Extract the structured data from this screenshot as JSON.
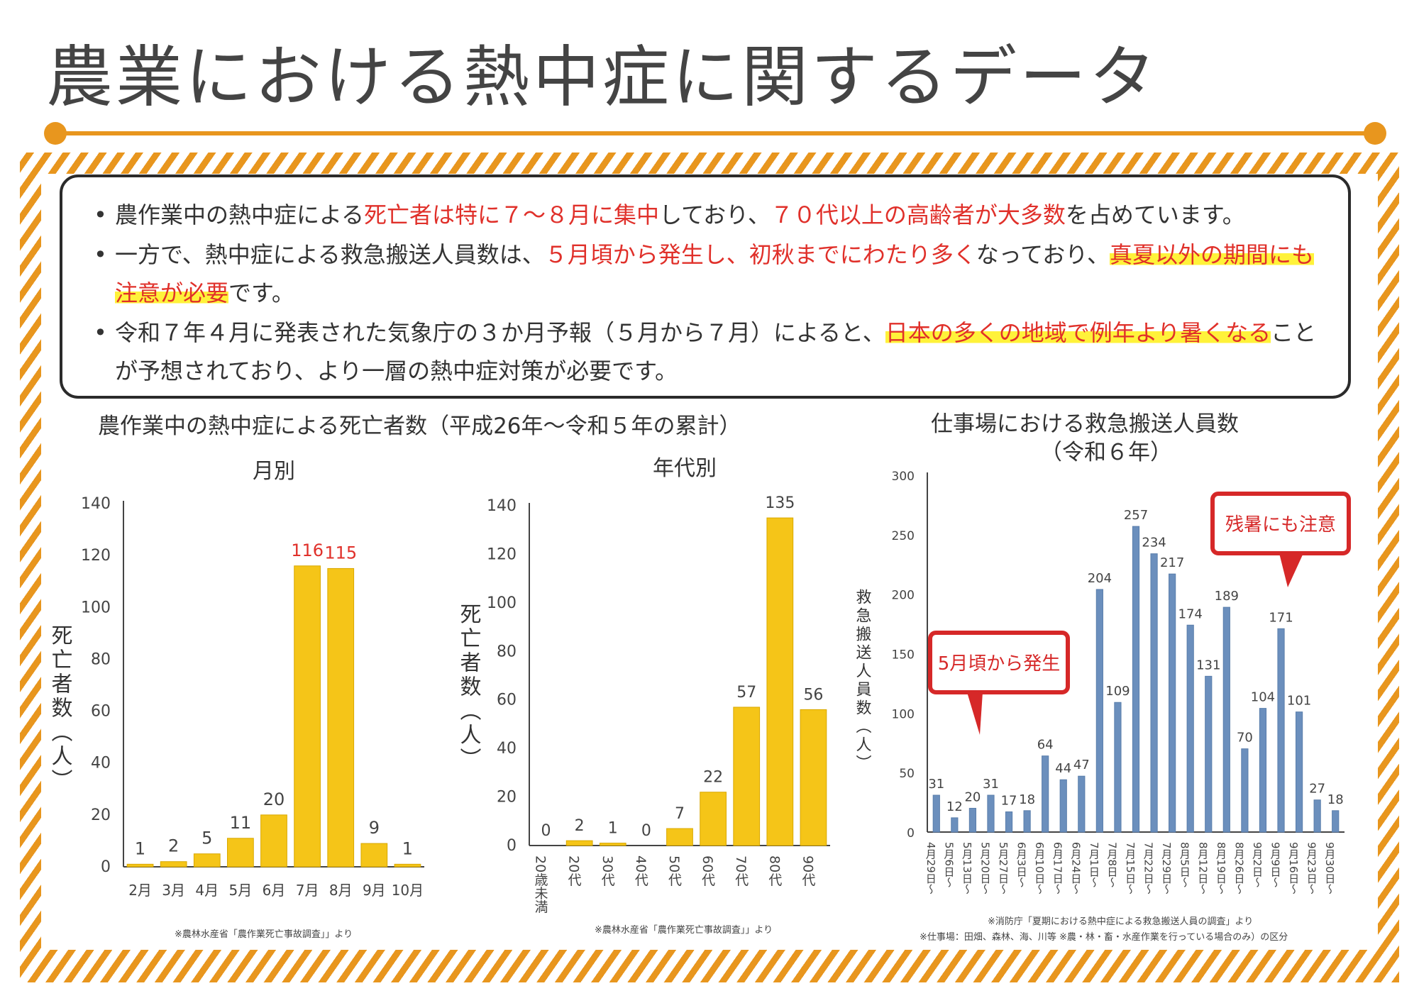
{
  "title": "農業における熱中症に関するデータ",
  "notes": [
    {
      "segments": [
        {
          "t": "農作業中の熱中症による",
          "s": "n"
        },
        {
          "t": "死亡者は特に７～８月に集中",
          "s": "r"
        },
        {
          "t": "しており、",
          "s": "n"
        },
        {
          "t": "７０代以上の高齢者が大多数",
          "s": "r"
        },
        {
          "t": "を占めています。",
          "s": "n"
        }
      ]
    },
    {
      "segments": [
        {
          "t": "一方で、熱中症による救急搬送人員数は、",
          "s": "n"
        },
        {
          "t": "５月頃から発生し、初秋までにわたり多く",
          "s": "r"
        },
        {
          "t": "なっており、",
          "s": "n"
        },
        {
          "t": "真夏以外の期間にも注意が必要",
          "s": "h"
        },
        {
          "t": "です。",
          "s": "n"
        }
      ]
    },
    {
      "segments": [
        {
          "t": "令和７年４月に発表された気象庁の３か月予報（５月から７月）によると、",
          "s": "n"
        },
        {
          "t": "日本の多くの地域で例年より暑くなる",
          "s": "h"
        },
        {
          "t": "ことが予想されており、より一層の熱中症対策が必要です。",
          "s": "n"
        }
      ]
    }
  ],
  "deaths_section_title": "農作業中の熱中症による死亡者数（平成26年～令和５年の累計）",
  "transport_title_line1": "仕事場における救急搬送人員数",
  "transport_title_line2": "（令和６年）",
  "footnote_monthly": "※農林水産省「農作業死亡事故調査」」より",
  "footnote_age": "※農林水産省「農作業死亡事故調査」」より",
  "footnote_transport_1": "※消防庁「夏期における熱中症による救急搬送人員の調査」より",
  "footnote_transport_2": "※仕事場：田畑、森林、海、川等 ※農・林・畜・水産作業を行っている場合のみ）の区分",
  "colors": {
    "accent": "#e8961e",
    "bar_yellow": "#f5c518",
    "bar_blue": "#6b8fbd",
    "red": "#e0302a",
    "highlight": "#fff23a"
  },
  "chart_data": [
    {
      "type": "bar",
      "title": "月別",
      "ylabel": "死亡者数（人）",
      "categories": [
        "2月",
        "3月",
        "4月",
        "5月",
        "6月",
        "7月",
        "8月",
        "9月",
        "10月"
      ],
      "values": [
        1,
        2,
        5,
        11,
        20,
        116,
        115,
        9,
        1
      ],
      "highlight_labels": [
        5,
        6
      ],
      "ylim": [
        0,
        140
      ],
      "yticks": [
        0,
        20,
        40,
        60,
        80,
        100,
        120,
        140
      ]
    },
    {
      "type": "bar",
      "title": "年代別",
      "ylabel": "死亡者数（人）",
      "categories": [
        "20歳未満",
        "20代",
        "30代",
        "40代",
        "50代",
        "60代",
        "70代",
        "80代",
        "90代"
      ],
      "values": [
        0,
        2,
        1,
        0,
        7,
        22,
        57,
        135,
        56
      ],
      "ylim": [
        0,
        140
      ],
      "yticks": [
        0,
        20,
        40,
        60,
        80,
        100,
        120,
        140
      ]
    },
    {
      "type": "bar",
      "title": "仕事場における救急搬送人員数（令和６年）",
      "ylabel": "救急搬送人員数（人）",
      "categories": [
        "4月29日～",
        "5月6日～",
        "5月13日～",
        "5月20日～",
        "5月27日～",
        "6月3日～",
        "6月10日～",
        "6月17日～",
        "6月24日～",
        "7月1日～",
        "7月8日～",
        "7月15日～",
        "7月22日～",
        "7月29日～",
        "8月5日～",
        "8月12日～",
        "8月19日～",
        "8月26日～",
        "9月2日～",
        "9月9日～",
        "9月16日～",
        "9月23日～",
        "9月30日～"
      ],
      "values": [
        31,
        12,
        20,
        31,
        17,
        18,
        64,
        44,
        47,
        204,
        109,
        257,
        234,
        217,
        174,
        131,
        189,
        70,
        104,
        171,
        101,
        27,
        18
      ],
      "ylim": [
        0,
        300
      ],
      "yticks": [
        0,
        50,
        100,
        150,
        200,
        250,
        300
      ],
      "callouts": [
        "5月頃から発生",
        "残暑にも注意"
      ]
    }
  ]
}
